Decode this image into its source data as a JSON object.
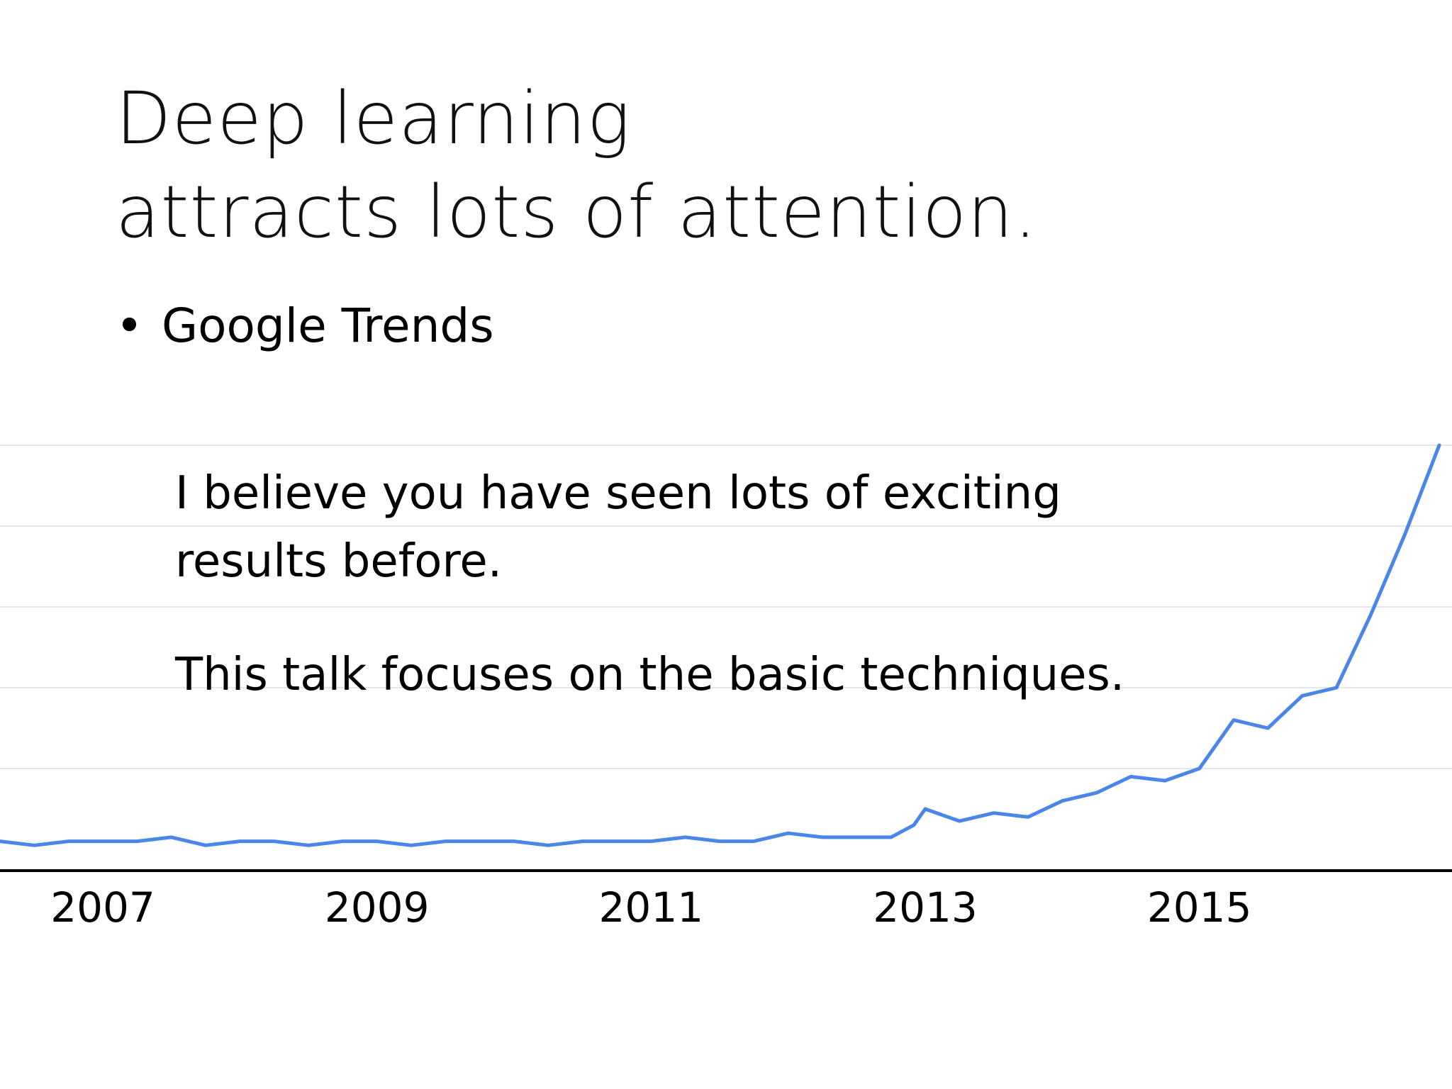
{
  "slide": {
    "title_line1": "Deep learning",
    "title_line2": "attracts lots of attention.",
    "bullet": "Google Trends",
    "overlay_line1": "I believe you have seen lots of exciting",
    "overlay_line2": "results before.",
    "overlay_line3": "This talk focuses on the basic techniques."
  },
  "colors": {
    "series": "#4a86e8",
    "gridline": "#e6e6e6",
    "axis": "#000000"
  },
  "chart_data": {
    "type": "line",
    "title": "",
    "xlabel": "",
    "ylabel": "",
    "x_ticks": [
      "2007",
      "2009",
      "2011",
      "2013",
      "2015"
    ],
    "xlim": [
      "2006-04",
      "2016-10"
    ],
    "ylim": [
      0,
      100
    ],
    "grid": true,
    "series": [
      {
        "x": [
          "2006-04",
          "2006-07",
          "2006-10",
          "2007-01",
          "2007-04",
          "2007-07",
          "2007-10",
          "2008-01",
          "2008-04",
          "2008-07",
          "2008-10",
          "2009-01",
          "2009-04",
          "2009-07",
          "2009-10",
          "2010-01",
          "2010-04",
          "2010-07",
          "2010-10",
          "2011-01",
          "2011-04",
          "2011-07",
          "2011-10",
          "2012-01",
          "2012-04",
          "2012-07",
          "2012-10",
          "2012-12",
          "2013-01",
          "2013-04",
          "2013-07",
          "2013-10",
          "2014-01",
          "2014-04",
          "2014-07",
          "2014-10",
          "2015-01",
          "2015-04",
          "2015-07",
          "2015-10",
          "2016-01",
          "2016-04",
          "2016-07",
          "2016-10"
        ],
        "values": [
          2,
          1,
          2,
          2,
          2,
          3,
          1,
          2,
          2,
          1,
          2,
          2,
          1,
          2,
          2,
          2,
          1,
          2,
          2,
          2,
          3,
          2,
          2,
          4,
          3,
          3,
          3,
          6,
          10,
          7,
          9,
          8,
          12,
          14,
          18,
          17,
          20,
          32,
          30,
          38,
          40,
          58,
          78,
          100
        ]
      }
    ]
  }
}
